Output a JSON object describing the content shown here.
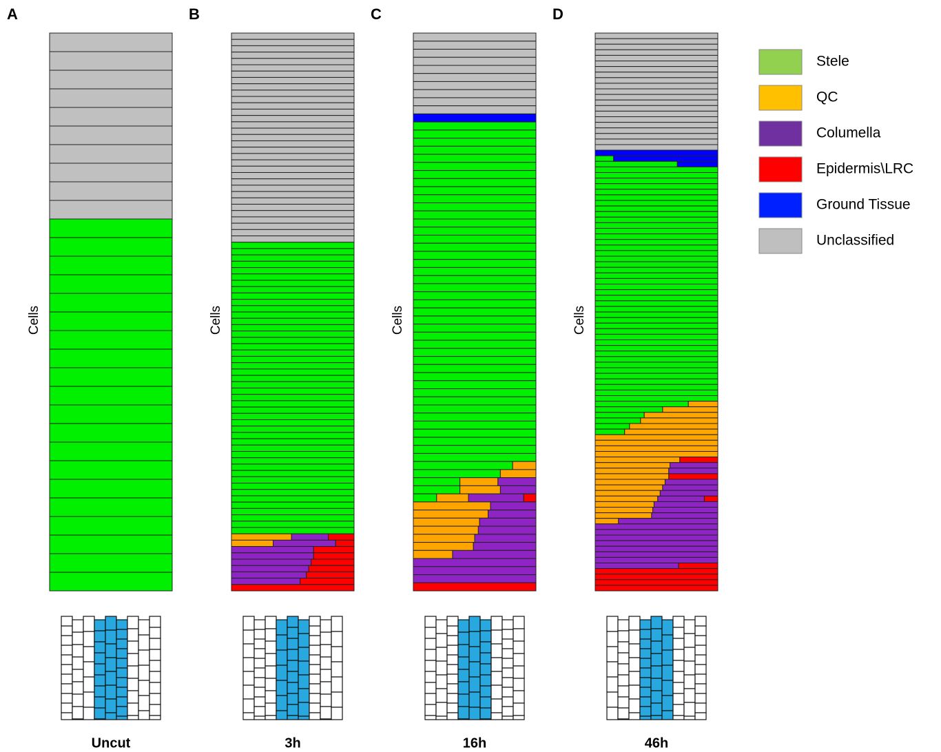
{
  "chart_data": {
    "type": "stacked-cells",
    "classes": [
      {
        "name": "Stele",
        "color": "#00f000",
        "swatch": "#92d050"
      },
      {
        "name": "QC",
        "color": "#ffa500",
        "swatch": "#ffc000"
      },
      {
        "name": "Columella",
        "color": "#8e24c4",
        "swatch": "#7030a0"
      },
      {
        "name": "Epidermis\\LRC",
        "color": "#ff0000",
        "swatch": "#ff0000"
      },
      {
        "name": "Ground Tissue",
        "color": "#0000ff",
        "swatch": "#0020ff"
      },
      {
        "name": "Unclassified",
        "color": "#c0c0c0",
        "swatch": "#bfbfbf"
      }
    ],
    "panels": [
      {
        "label": "A",
        "ylabel": "Cells",
        "caption": "Uncut",
        "rows": [
          {
            "count": 10,
            "shares": [
              0,
              0,
              0,
              0,
              0,
              100
            ]
          },
          {
            "count": 20,
            "shares": [
              100,
              0,
              0,
              0,
              0,
              0
            ]
          }
        ]
      },
      {
        "label": "B",
        "ylabel": "Cells",
        "caption": "3h",
        "rows": [
          {
            "count": 33,
            "shares": [
              0,
              0,
              0,
              0,
              0,
              100
            ]
          },
          {
            "count": 46,
            "shares": [
              100,
              0,
              0,
              0,
              0,
              0
            ]
          },
          {
            "count": 1,
            "shares": [
              0,
              49,
              30,
              21,
              0,
              0
            ]
          },
          {
            "count": 1,
            "shares": [
              0,
              34,
              51,
              15,
              0,
              0
            ]
          },
          {
            "count": 2,
            "shares": [
              0,
              0,
              67,
              33,
              0,
              0
            ]
          },
          {
            "count": 1,
            "shares": [
              0,
              0,
              65,
              35,
              0,
              0
            ]
          },
          {
            "count": 1,
            "shares": [
              0,
              0,
              63,
              37,
              0,
              0
            ]
          },
          {
            "count": 1,
            "shares": [
              0,
              0,
              61,
              39,
              0,
              0
            ]
          },
          {
            "count": 1,
            "shares": [
              0,
              0,
              56,
              44,
              0,
              0
            ]
          },
          {
            "count": 1,
            "shares": [
              0,
              0,
              0,
              100,
              0,
              0
            ]
          }
        ]
      },
      {
        "label": "C",
        "ylabel": "Cells",
        "caption": "16h",
        "rows": [
          {
            "count": 10,
            "shares": [
              0,
              0,
              0,
              0,
              0,
              100
            ]
          },
          {
            "count": 1,
            "shares": [
              0,
              0,
              0,
              0,
              100,
              0
            ]
          },
          {
            "count": 42,
            "shares": [
              100,
              0,
              0,
              0,
              0,
              0
            ]
          },
          {
            "count": 1,
            "shares": [
              81,
              19,
              0,
              0,
              0,
              0
            ]
          },
          {
            "count": 1,
            "shares": [
              71,
              29,
              0,
              0,
              0,
              0
            ]
          },
          {
            "count": 1,
            "shares": [
              38,
              31,
              31,
              0,
              0,
              0
            ]
          },
          {
            "count": 1,
            "shares": [
              38,
              33,
              29,
              0,
              0,
              0
            ]
          },
          {
            "count": 1,
            "shares": [
              19,
              26,
              45,
              10,
              0,
              0
            ]
          },
          {
            "count": 1,
            "shares": [
              0,
              63,
              37,
              0,
              0,
              0
            ]
          },
          {
            "count": 1,
            "shares": [
              0,
              61,
              39,
              0,
              0,
              0
            ]
          },
          {
            "count": 1,
            "shares": [
              0,
              54,
              46,
              0,
              0,
              0
            ]
          },
          {
            "count": 1,
            "shares": [
              0,
              53,
              47,
              0,
              0,
              0
            ]
          },
          {
            "count": 1,
            "shares": [
              0,
              50,
              50,
              0,
              0,
              0
            ]
          },
          {
            "count": 1,
            "shares": [
              0,
              49,
              51,
              0,
              0,
              0
            ]
          },
          {
            "count": 1,
            "shares": [
              0,
              32,
              68,
              0,
              0,
              0
            ]
          },
          {
            "count": 3,
            "shares": [
              0,
              0,
              100,
              0,
              0,
              0
            ]
          },
          {
            "count": 1,
            "shares": [
              0,
              0,
              0,
              100,
              0,
              0
            ]
          }
        ]
      },
      {
        "label": "D",
        "ylabel": "Cells",
        "caption": "46h",
        "rows": [
          {
            "count": 21,
            "shares": [
              0,
              0,
              0,
              0,
              0,
              100
            ]
          },
          {
            "count": 1,
            "shares": [
              0,
              0,
              0,
              0,
              100,
              0
            ]
          },
          {
            "count": 1,
            "shares": [
              15,
              0,
              0,
              0,
              85,
              0
            ]
          },
          {
            "count": 1,
            "shares": [
              67,
              0,
              0,
              0,
              33,
              0
            ]
          },
          {
            "count": 42,
            "shares": [
              100,
              0,
              0,
              0,
              0,
              0
            ]
          },
          {
            "count": 1,
            "shares": [
              76,
              24,
              0,
              0,
              0,
              0
            ]
          },
          {
            "count": 1,
            "shares": [
              55,
              45,
              0,
              0,
              0,
              0
            ]
          },
          {
            "count": 1,
            "shares": [
              40,
              60,
              0,
              0,
              0,
              0
            ]
          },
          {
            "count": 1,
            "shares": [
              37,
              63,
              0,
              0,
              0,
              0
            ]
          },
          {
            "count": 1,
            "shares": [
              28,
              72,
              0,
              0,
              0,
              0
            ]
          },
          {
            "count": 1,
            "shares": [
              24,
              76,
              0,
              0,
              0,
              0
            ]
          },
          {
            "count": 4,
            "shares": [
              0,
              100,
              0,
              0,
              0,
              0
            ]
          },
          {
            "count": 1,
            "shares": [
              0,
              69,
              0,
              31,
              0,
              0
            ]
          },
          {
            "count": 1,
            "shares": [
              0,
              61,
              39,
              0,
              0,
              0
            ]
          },
          {
            "count": 1,
            "shares": [
              0,
              60,
              40,
              0,
              0,
              0
            ]
          },
          {
            "count": 1,
            "shares": [
              0,
              60,
              0,
              40,
              0,
              0
            ]
          },
          {
            "count": 1,
            "shares": [
              0,
              57,
              43,
              0,
              0,
              0
            ]
          },
          {
            "count": 1,
            "shares": [
              0,
              55,
              45,
              0,
              0,
              0
            ]
          },
          {
            "count": 1,
            "shares": [
              0,
              53,
              47,
              0,
              0,
              0
            ]
          },
          {
            "count": 1,
            "shares": [
              0,
              51,
              38,
              11,
              0,
              0
            ]
          },
          {
            "count": 1,
            "shares": [
              0,
              48,
              52,
              0,
              0,
              0
            ]
          },
          {
            "count": 1,
            "shares": [
              0,
              47,
              53,
              0,
              0,
              0
            ]
          },
          {
            "count": 1,
            "shares": [
              0,
              46,
              54,
              0,
              0,
              0
            ]
          },
          {
            "count": 1,
            "shares": [
              0,
              19,
              81,
              0,
              0,
              0
            ]
          },
          {
            "count": 7,
            "shares": [
              0,
              0,
              100,
              0,
              0,
              0
            ]
          },
          {
            "count": 1,
            "shares": [
              0,
              0,
              68,
              32,
              0,
              0
            ]
          },
          {
            "count": 4,
            "shares": [
              0,
              0,
              0,
              100,
              0,
              0
            ]
          }
        ]
      }
    ]
  }
}
